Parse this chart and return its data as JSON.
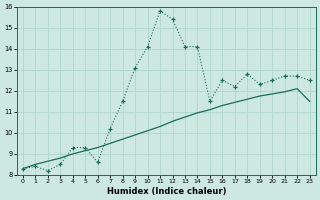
{
  "title": "",
  "xlabel": "Humidex (Indice chaleur)",
  "ylabel": "",
  "xlim": [
    -0.5,
    23.5
  ],
  "ylim": [
    8,
    16
  ],
  "yticks": [
    8,
    9,
    10,
    11,
    12,
    13,
    14,
    15,
    16
  ],
  "xticks": [
    0,
    1,
    2,
    3,
    4,
    5,
    6,
    7,
    8,
    9,
    10,
    11,
    12,
    13,
    14,
    15,
    16,
    17,
    18,
    19,
    20,
    21,
    22,
    23
  ],
  "bg_color": "#cce8e0",
  "line_color": "#1a6b5a",
  "grid_color": "#b0d4cc",
  "curve1_x": [
    0,
    1,
    2,
    3,
    4,
    5,
    6,
    7,
    8,
    9,
    10,
    11,
    12,
    13,
    14,
    15,
    16,
    17,
    18,
    19,
    20,
    21,
    22,
    23
  ],
  "curve1_y": [
    8.3,
    8.4,
    8.2,
    8.5,
    9.3,
    9.3,
    8.6,
    10.2,
    11.5,
    13.1,
    14.1,
    15.8,
    15.4,
    14.1,
    14.1,
    11.5,
    12.5,
    12.2,
    12.8,
    12.3,
    12.5,
    12.7,
    12.7,
    12.5
  ],
  "curve2_x": [
    0,
    1,
    2,
    3,
    4,
    5,
    6,
    7,
    8,
    9,
    10,
    11,
    12,
    13,
    14,
    15,
    16,
    17,
    18,
    19,
    20,
    21,
    22,
    23
  ],
  "curve2_y": [
    8.3,
    8.5,
    8.65,
    8.8,
    9.0,
    9.15,
    9.3,
    9.5,
    9.7,
    9.9,
    10.1,
    10.3,
    10.55,
    10.75,
    10.95,
    11.1,
    11.3,
    11.45,
    11.6,
    11.75,
    11.85,
    11.95,
    12.1,
    11.5
  ]
}
